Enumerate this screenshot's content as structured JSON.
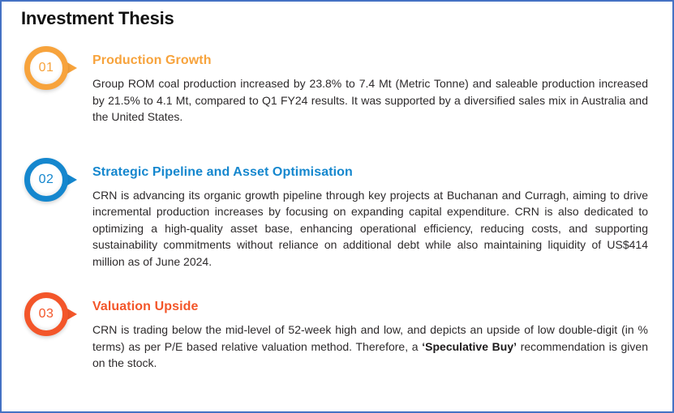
{
  "page": {
    "title": "Investment Thesis",
    "border_color": "#4472C4"
  },
  "sections": [
    {
      "number": "01",
      "accent": "#F7A33C",
      "heading": "Production Growth",
      "body": "Group ROM coal production increased by 23.8% to 7.4 Mt (Metric Tonne) and saleable production increased by 21.5% to 4.1 Mt, compared to Q1 FY24 results. It was supported by a diversified sales mix in Australia and the United States."
    },
    {
      "number": "02",
      "accent": "#1587CE",
      "heading": "Strategic Pipeline and Asset Optimisation",
      "body": "CRN is advancing its organic growth pipeline through key projects at Buchanan and Curragh, aiming to drive incremental production increases by focusing on expanding capital expenditure. CRN is also dedicated to optimizing a high-quality asset base, enhancing operational efficiency, reducing costs, and supporting sustainability commitments without reliance on additional debt while also maintaining liquidity of US$414 million as of June 2024."
    },
    {
      "number": "03",
      "accent": "#F3562A",
      "heading": "Valuation Upside",
      "body_pre": "CRN is trading below the mid-level of 52-week high and low, and depicts an upside of low double-digit (in % terms) as per P/E based relative valuation method. Therefore, a ",
      "body_bold": "‘Speculative Buy’",
      "body_post": " recommendation is given on the stock."
    }
  ]
}
